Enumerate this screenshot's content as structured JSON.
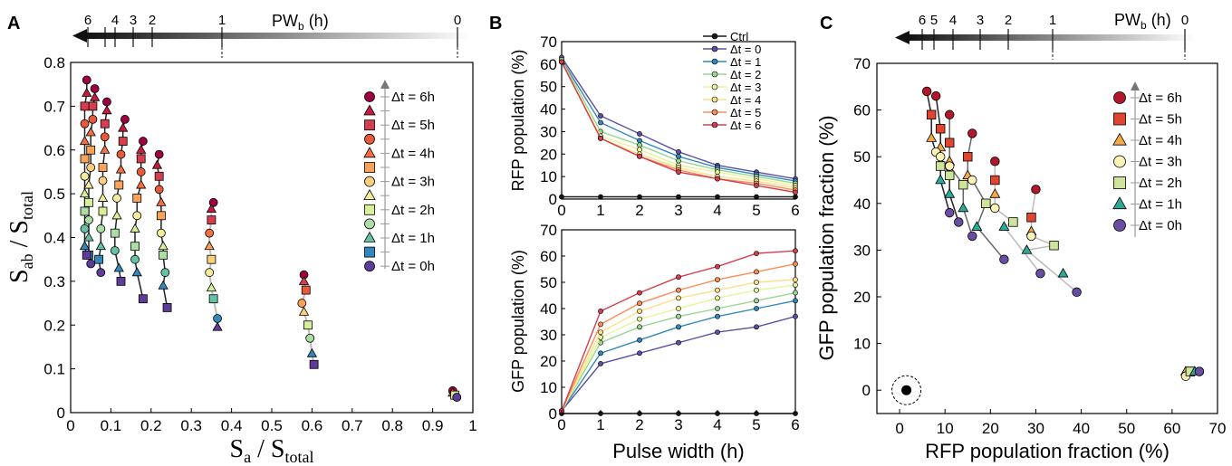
{
  "panel_labels": [
    "A",
    "B",
    "C"
  ],
  "pw_bar": {
    "label": "PW",
    "label_sub": "b",
    "label_unit": " (h)",
    "ticks": [
      "6",
      "4",
      "3",
      "2",
      "1",
      "0"
    ],
    "ticks_c": [
      "6",
      "5",
      "4",
      "3",
      "2",
      "1",
      "0"
    ]
  },
  "legend_dt": [
    "Δt = 6h",
    "Δt = 5h",
    "Δt = 4h",
    "Δt = 3h",
    "Δt = 2h",
    "Δt = 1h",
    "Δt = 0h"
  ],
  "legend_dt_full": [
    "Δt = 6h",
    "Δt = 5h",
    "Δt = 4h",
    "Δt = 3h",
    "Δt = 2h",
    "Δt = 1h",
    "Δt = 0h"
  ],
  "legend_b": [
    "Ctrl",
    "Δt = 0",
    "Δt = 1",
    "Δt = 2",
    "Δt = 3",
    "Δt = 4",
    "Δt = 5",
    "Δt = 6"
  ],
  "colors": {
    "dt6": "#b2182b",
    "dt5": "#d73027",
    "dt4": "#f46d43",
    "dt3": "#fdae61",
    "dt2": "#fee090",
    "dt1": "#d9ef8b",
    "dt0": "#4575b4",
    "ctrl": "#1a1a1a",
    "seq": [
      "#5e3c99",
      "#3288bd",
      "#66c2a5",
      "#abdda4",
      "#fee08b",
      "#fdae61",
      "#f46d43",
      "#d53e4f",
      "#9e0142"
    ]
  },
  "chart_data": [
    {
      "type": "scatter",
      "panel": "A",
      "xlabel_main": "S",
      "xlabel_sub": "a",
      "xlabel_rest": " / S",
      "xlabel_sub2": "total",
      "ylabel_main": "S",
      "ylabel_sub": "ab",
      "ylabel_rest": " / S",
      "ylabel_sub2": "total",
      "xlim": [
        0,
        1
      ],
      "ylim": [
        0,
        0.8
      ],
      "xticks": [
        0,
        0.1,
        0.2,
        0.3,
        0.4,
        0.5,
        0.6,
        0.7,
        0.8,
        0.9,
        1
      ],
      "yticks": [
        0,
        0.1,
        0.2,
        0.3,
        0.4,
        0.5,
        0.6,
        0.7,
        0.8
      ],
      "xtick_labels": [
        "0",
        "0.1",
        "0.2",
        "0.3",
        "0.4",
        "0.5",
        "0.6",
        "0.7",
        "0.8",
        "0.9",
        "1"
      ],
      "ytick_labels": [
        "0",
        "0.1",
        "0.2",
        "0.3",
        "0.4",
        "0.5",
        "0.6",
        "0.7",
        "0.8"
      ],
      "pw_columns": [
        {
          "pw": 0,
          "points": [
            [
              0.95,
              0.05
            ],
            [
              0.95,
              0.045
            ],
            [
              0.955,
              0.04
            ],
            [
              0.96,
              0.035
            ]
          ]
        },
        {
          "pw": 1,
          "points": [
            [
              0.58,
              0.315
            ],
            [
              0.58,
              0.3
            ],
            [
              0.585,
              0.28
            ],
            [
              0.575,
              0.25
            ],
            [
              0.58,
              0.23
            ],
            [
              0.59,
              0.2
            ],
            [
              0.595,
              0.17
            ],
            [
              0.6,
              0.135
            ],
            [
              0.605,
              0.11
            ]
          ]
        },
        {
          "pw": 2,
          "points": [
            [
              0.355,
              0.48
            ],
            [
              0.35,
              0.465
            ],
            [
              0.35,
              0.44
            ],
            [
              0.345,
              0.41
            ],
            [
              0.345,
              0.38
            ],
            [
              0.35,
              0.35
            ],
            [
              0.345,
              0.32
            ],
            [
              0.35,
              0.285
            ],
            [
              0.355,
              0.26
            ],
            [
              0.365,
              0.215
            ],
            [
              0.365,
              0.195
            ]
          ]
        },
        {
          "pw": 3,
          "points": [
            [
              0.22,
              0.59
            ],
            [
              0.215,
              0.565
            ],
            [
              0.22,
              0.54
            ],
            [
              0.22,
              0.51
            ],
            [
              0.225,
              0.48
            ],
            [
              0.225,
              0.45
            ],
            [
              0.225,
              0.41
            ],
            [
              0.23,
              0.38
            ],
            [
              0.23,
              0.36
            ],
            [
              0.235,
              0.32
            ],
            [
              0.23,
              0.29
            ],
            [
              0.24,
              0.24
            ]
          ]
        },
        {
          "pw": 4,
          "points": [
            [
              0.18,
              0.62
            ],
            [
              0.175,
              0.6
            ],
            [
              0.175,
              0.58
            ],
            [
              0.175,
              0.55
            ],
            [
              0.175,
              0.52
            ],
            [
              0.165,
              0.49
            ],
            [
              0.165,
              0.45
            ],
            [
              0.16,
              0.42
            ],
            [
              0.16,
              0.38
            ],
            [
              0.16,
              0.35
            ],
            [
              0.165,
              0.32
            ],
            [
              0.18,
              0.26
            ]
          ]
        },
        {
          "pw": 5,
          "points": [
            [
              0.135,
              0.67
            ],
            [
              0.13,
              0.65
            ],
            [
              0.13,
              0.62
            ],
            [
              0.125,
              0.59
            ],
            [
              0.125,
              0.555
            ],
            [
              0.12,
              0.52
            ],
            [
              0.115,
              0.49
            ],
            [
              0.115,
              0.45
            ],
            [
              0.11,
              0.41
            ],
            [
              0.11,
              0.37
            ],
            [
              0.12,
              0.33
            ],
            [
              0.125,
              0.3
            ]
          ]
        },
        {
          "pw": 6,
          "points": [
            [
              0.09,
              0.71
            ],
            [
              0.09,
              0.69
            ],
            [
              0.085,
              0.66
            ],
            [
              0.085,
              0.63
            ],
            [
              0.085,
              0.6
            ],
            [
              0.08,
              0.56
            ],
            [
              0.08,
              0.53
            ],
            [
              0.08,
              0.49
            ],
            [
              0.08,
              0.46
            ],
            [
              0.075,
              0.42
            ],
            [
              0.075,
              0.38
            ],
            [
              0.07,
              0.35
            ],
            [
              0.075,
              0.32
            ]
          ]
        },
        {
          "pw": 7,
          "points": [
            [
              0.06,
              0.74
            ],
            [
              0.06,
              0.72
            ],
            [
              0.055,
              0.7
            ],
            [
              0.055,
              0.67
            ],
            [
              0.05,
              0.64
            ],
            [
              0.05,
              0.6
            ],
            [
              0.05,
              0.56
            ],
            [
              0.045,
              0.52
            ],
            [
              0.045,
              0.48
            ],
            [
              0.045,
              0.44
            ],
            [
              0.045,
              0.4
            ],
            [
              0.045,
              0.36
            ],
            [
              0.05,
              0.34
            ]
          ]
        },
        {
          "pw": 8,
          "points": [
            [
              0.04,
              0.76
            ],
            [
              0.04,
              0.73
            ],
            [
              0.035,
              0.7
            ],
            [
              0.035,
              0.66
            ],
            [
              0.035,
              0.62
            ],
            [
              0.035,
              0.58
            ],
            [
              0.035,
              0.54
            ],
            [
              0.035,
              0.5
            ],
            [
              0.035,
              0.46
            ],
            [
              0.035,
              0.42
            ],
            [
              0.035,
              0.38
            ],
            [
              0.04,
              0.36
            ]
          ]
        }
      ]
    },
    {
      "type": "line",
      "panel": "B-top",
      "ylabel": "RFP population (%)",
      "xlim": [
        0,
        6
      ],
      "ylim": [
        0,
        70
      ],
      "x": [
        0,
        1,
        2,
        3,
        4,
        5,
        6
      ],
      "yticks": [
        0,
        10,
        20,
        30,
        40,
        50,
        60,
        70
      ],
      "series": [
        {
          "name": "Ctrl",
          "values": [
            1,
            1,
            1,
            1,
            1,
            1,
            1
          ]
        },
        {
          "name": "Δt = 0",
          "values": [
            63,
            37,
            29,
            21,
            15,
            12,
            9
          ]
        },
        {
          "name": "Δt = 1",
          "values": [
            62,
            34,
            26,
            19,
            14,
            11,
            8
          ]
        },
        {
          "name": "Δt = 2",
          "values": [
            62,
            30,
            24,
            17,
            13,
            10,
            7
          ]
        },
        {
          "name": "Δt = 3",
          "values": [
            61,
            28,
            22,
            15,
            12,
            9,
            6
          ]
        },
        {
          "name": "Δt = 4",
          "values": [
            61,
            27,
            20,
            14,
            10,
            8,
            5
          ]
        },
        {
          "name": "Δt = 5",
          "values": [
            61,
            27,
            19,
            13,
            9,
            7,
            4
          ]
        },
        {
          "name": "Δt = 6",
          "values": [
            61,
            27,
            19,
            12,
            9,
            6,
            3
          ]
        }
      ]
    },
    {
      "type": "line",
      "panel": "B-bottom",
      "ylabel": "GFP population (%)",
      "xlabel": "Pulse width (h)",
      "xlim": [
        0,
        6
      ],
      "ylim": [
        0,
        70
      ],
      "x": [
        0,
        1,
        2,
        3,
        4,
        5,
        6
      ],
      "yticks": [
        0,
        10,
        20,
        30,
        40,
        50,
        60,
        70
      ],
      "series": [
        {
          "name": "Ctrl",
          "values": [
            0,
            0,
            0,
            0,
            0,
            0,
            0
          ]
        },
        {
          "name": "Δt = 0",
          "values": [
            1,
            19,
            23,
            27,
            31,
            33,
            37
          ]
        },
        {
          "name": "Δt = 1",
          "values": [
            1,
            23,
            28,
            33,
            37,
            40,
            43
          ]
        },
        {
          "name": "Δt = 2",
          "values": [
            1,
            27,
            33,
            37,
            40,
            43,
            46
          ]
        },
        {
          "name": "Δt = 3",
          "values": [
            1,
            29,
            36,
            40,
            44,
            47,
            49
          ]
        },
        {
          "name": "Δt = 4",
          "values": [
            1,
            31,
            39,
            44,
            47,
            50,
            51
          ]
        },
        {
          "name": "Δt = 5",
          "values": [
            1,
            34,
            42,
            47,
            51,
            54,
            57
          ]
        },
        {
          "name": "Δt = 6",
          "values": [
            1,
            39,
            46,
            52,
            56,
            61,
            62
          ]
        }
      ]
    },
    {
      "type": "scatter",
      "panel": "C",
      "xlabel": "RFP population fraction (%)",
      "ylabel": "GFP population fraction (%)",
      "xlim": [
        -5,
        70
      ],
      "ylim": [
        -5,
        70
      ],
      "xticks": [
        0,
        10,
        20,
        30,
        40,
        50,
        60,
        70
      ],
      "yticks": [
        0,
        10,
        20,
        30,
        40,
        50,
        60,
        70
      ],
      "ctrl_point": [
        1.5,
        0
      ],
      "series": [
        {
          "name": "Δt = 6h",
          "points": [
            [
              6,
              64
            ],
            [
              8,
              63
            ],
            [
              11,
              59
            ],
            [
              16,
              55
            ],
            [
              21,
              49
            ],
            [
              30,
              43
            ],
            [
              66,
              4
            ]
          ]
        },
        {
          "name": "Δt = 5h",
          "points": [
            [
              7,
              59
            ],
            [
              9,
              56
            ],
            [
              11,
              53
            ],
            [
              15,
              50
            ],
            [
              21,
              45
            ],
            [
              29,
              37
            ],
            [
              64,
              4
            ]
          ]
        },
        {
          "name": "Δt = 4h",
          "points": [
            [
              7,
              54
            ],
            [
              9,
              52
            ],
            [
              11,
              49
            ],
            [
              15,
              46
            ],
            [
              21,
              42
            ],
            [
              29,
              34
            ],
            [
              63,
              4
            ]
          ]
        },
        {
          "name": "Δt = 3h",
          "points": [
            [
              8,
              51
            ],
            [
              9,
              50
            ],
            [
              11,
              48
            ],
            [
              16,
              45
            ],
            [
              21,
              39
            ],
            [
              29,
              33
            ],
            [
              63,
              3
            ]
          ]
        },
        {
          "name": "Δt = 2h",
          "points": [
            [
              9,
              48
            ],
            [
              11,
              46
            ],
            [
              14,
              44
            ],
            [
              19,
              40
            ],
            [
              25,
              36
            ],
            [
              34,
              31
            ],
            [
              64,
              4
            ]
          ]
        },
        {
          "name": "Δt = 1h",
          "points": [
            [
              9,
              45
            ],
            [
              11,
              42
            ],
            [
              14,
              39
            ],
            [
              17,
              35
            ],
            [
              23,
              35
            ],
            [
              28,
              30
            ],
            [
              36,
              25
            ],
            [
              65,
              4
            ]
          ]
        },
        {
          "name": "Δt = 0h",
          "points": [
            [
              11,
              38
            ],
            [
              13,
              36
            ],
            [
              16,
              33
            ],
            [
              23,
              28
            ],
            [
              31,
              25
            ],
            [
              39,
              21
            ],
            [
              66,
              4
            ]
          ]
        }
      ]
    }
  ]
}
